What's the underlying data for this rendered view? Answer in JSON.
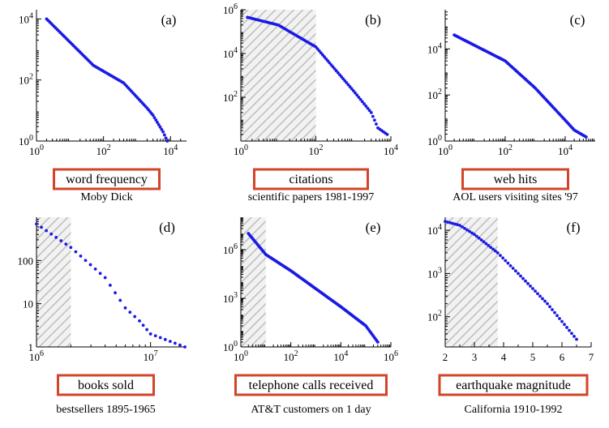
{
  "colors": {
    "points": "#1a1ae6",
    "label_box_border": "#d2452a",
    "hatch": "#bdbdbd",
    "axis": "#000000"
  },
  "chart_data": [
    {
      "type": "scatter",
      "panel_label": "(a)",
      "xlabel": "word frequency",
      "caption": "Moby Dick",
      "x_scale": "log",
      "y_scale": "log",
      "xlim": [
        1,
        30000
      ],
      "ylim": [
        1,
        20000
      ],
      "x_ticks": [
        {
          "value": 1,
          "label": "10^0"
        },
        {
          "value": 100,
          "label": "10^2"
        },
        {
          "value": 10000,
          "label": "10^4"
        }
      ],
      "y_ticks": [
        {
          "value": 1,
          "label": "10^0"
        },
        {
          "value": 100,
          "label": "10^2"
        },
        {
          "value": 10000,
          "label": "10^4"
        }
      ],
      "shaded_region": null,
      "series": [
        {
          "x": [
            2,
            50,
            400,
            2000,
            3000,
            6000,
            8000
          ],
          "y": [
            10000,
            300,
            80,
            12,
            7,
            2,
            1
          ]
        }
      ]
    },
    {
      "type": "scatter",
      "panel_label": "(b)",
      "xlabel": "citations",
      "caption": "scientific papers 1981-1997",
      "x_scale": "log",
      "y_scale": "log",
      "xlim": [
        1,
        10000
      ],
      "ylim": [
        1,
        1000000
      ],
      "x_ticks": [
        {
          "value": 1,
          "label": "10^0"
        },
        {
          "value": 100,
          "label": "10^2"
        },
        {
          "value": 10000,
          "label": "10^4"
        }
      ],
      "y_ticks": [
        {
          "value": 100,
          "label": "10^2"
        },
        {
          "value": 10000,
          "label": "10^4"
        },
        {
          "value": 1000000,
          "label": "10^6"
        }
      ],
      "shaded_region": [
        1,
        100
      ],
      "series": [
        {
          "x": [
            1.5,
            10,
            100,
            1000,
            3000,
            4500,
            8000
          ],
          "y": [
            450000,
            200000,
            20000,
            200,
            20,
            4,
            2
          ]
        }
      ]
    },
    {
      "type": "scatter",
      "panel_label": "(c)",
      "xlabel": "web hits",
      "caption": "AOL users visiting sites '97",
      "x_scale": "log",
      "y_scale": "log",
      "xlim": [
        1,
        100000
      ],
      "ylim": [
        1,
        500000
      ],
      "x_ticks": [
        {
          "value": 1,
          "label": "10^0"
        },
        {
          "value": 100,
          "label": "10^2"
        },
        {
          "value": 10000,
          "label": "10^4"
        }
      ],
      "y_ticks": [
        {
          "value": 1,
          "label": "10^0"
        },
        {
          "value": 100,
          "label": "10^2"
        },
        {
          "value": 10000,
          "label": "10^4"
        }
      ],
      "shaded_region": null,
      "series": [
        {
          "x": [
            2,
            100,
            1000,
            10000,
            20000,
            50000
          ],
          "y": [
            40000,
            3000,
            200,
            8,
            3,
            1.5
          ]
        }
      ]
    },
    {
      "type": "scatter",
      "panel_label": "(d)",
      "xlabel": "books sold",
      "caption": "bestsellers 1895-1965",
      "x_scale": "log",
      "y_scale": "log",
      "xlim": [
        1000000,
        20000000
      ],
      "ylim": [
        1,
        1000
      ],
      "x_ticks": [
        {
          "value": 1000000,
          "label": "10^6"
        },
        {
          "value": 10000000,
          "label": "10^7"
        }
      ],
      "y_ticks": [
        {
          "value": 1,
          "label": "1"
        },
        {
          "value": 10,
          "label": "10"
        },
        {
          "value": 100,
          "label": "100"
        }
      ],
      "shaded_region": [
        1000000,
        2000000
      ],
      "series": [
        {
          "x": [
            1000000,
            2000000,
            4000000,
            6000000,
            8000000,
            10000000,
            20000000
          ],
          "y": [
            700,
            200,
            40,
            8,
            4,
            2,
            1
          ]
        }
      ]
    },
    {
      "type": "scatter",
      "panel_label": "(e)",
      "xlabel": "telephone calls received",
      "caption": "AT&T customers on 1 day",
      "x_scale": "log",
      "y_scale": "log",
      "xlim": [
        1,
        1000000
      ],
      "ylim": [
        1,
        100000000
      ],
      "x_ticks": [
        {
          "value": 1,
          "label": "10^0"
        },
        {
          "value": 100,
          "label": "10^2"
        },
        {
          "value": 10000,
          "label": "10^4"
        },
        {
          "value": 1000000,
          "label": "10^6"
        }
      ],
      "y_ticks": [
        {
          "value": 1,
          "label": "10^0"
        },
        {
          "value": 1000,
          "label": "10^3"
        },
        {
          "value": 1000000,
          "label": "10^6"
        }
      ],
      "shaded_region": [
        1,
        10
      ],
      "series": [
        {
          "x": [
            2,
            10,
            100,
            10000,
            100000,
            300000
          ],
          "y": [
            10000000,
            500000,
            50000,
            300,
            20,
            2
          ]
        }
      ]
    },
    {
      "type": "scatter",
      "panel_label": "(f)",
      "xlabel": "earthquake magnitude",
      "caption": "California 1910-1992",
      "x_scale": "linear",
      "y_scale": "log",
      "xlim": [
        2,
        7
      ],
      "ylim": [
        20,
        20000
      ],
      "x_ticks": [
        {
          "value": 2,
          "label": "2"
        },
        {
          "value": 3,
          "label": "3"
        },
        {
          "value": 4,
          "label": "4"
        },
        {
          "value": 5,
          "label": "5"
        },
        {
          "value": 6,
          "label": "6"
        },
        {
          "value": 7,
          "label": "7"
        }
      ],
      "y_ticks": [
        {
          "value": 100,
          "label": "10^2"
        },
        {
          "value": 1000,
          "label": "10^3"
        },
        {
          "value": 10000,
          "label": "10^4"
        }
      ],
      "shaded_region": [
        2,
        3.8
      ],
      "series": [
        {
          "x": [
            2,
            2.5,
            3,
            3.8,
            4.5,
            5.5,
            6.5
          ],
          "y": [
            16000,
            13000,
            8000,
            3000,
            1000,
            200,
            30
          ]
        }
      ]
    }
  ]
}
